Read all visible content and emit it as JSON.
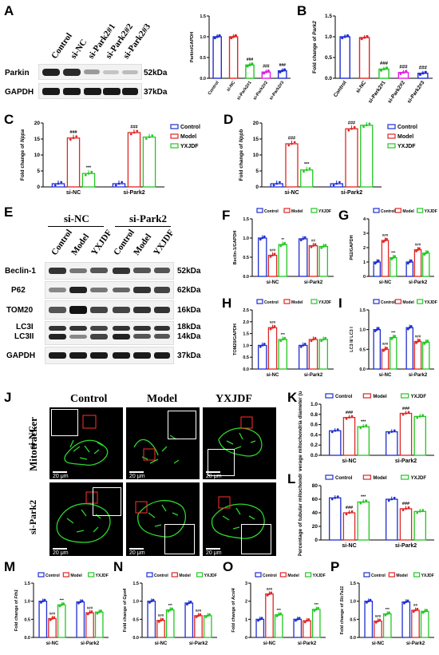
{
  "panel_letters": {
    "A": "A",
    "B": "B",
    "C": "C",
    "D": "D",
    "E": "E",
    "F": "F",
    "G": "G",
    "H": "H",
    "I": "I",
    "J": "J",
    "K": "K",
    "L": "L",
    "M": "M",
    "N": "N",
    "O": "O",
    "P": "P"
  },
  "blot_A": {
    "lanes": [
      "Control",
      "si-NC",
      "si-Park2#1",
      "si-Park2#2",
      "si-Park2#3"
    ],
    "rows": [
      {
        "name": "Parkin",
        "kda": "52kDa"
      },
      {
        "name": "GAPDH",
        "kda": "37kDa"
      }
    ]
  },
  "blot_E": {
    "groups": [
      "si-NC",
      "si-Park2"
    ],
    "lanes": [
      "Control",
      "Model",
      "YXJDF",
      "Control",
      "Model",
      "YXJDF"
    ],
    "rows": [
      {
        "name": "Beclin-1",
        "kda": "52kDa"
      },
      {
        "name": "P62",
        "kda": "62kDa"
      },
      {
        "name": "TOM20",
        "kda": "16kDa"
      },
      {
        "name": "LC3I",
        "kda": "18kDa"
      },
      {
        "name": "LC3II",
        "kda": "14kDa"
      },
      {
        "name": "GAPDH",
        "kda": "37kDa"
      }
    ]
  },
  "micro_J": {
    "cols": [
      "Control",
      "Model",
      "YXJDF"
    ],
    "rows": [
      "si-NC",
      "si-Park2"
    ],
    "side_label": "Mitotracker",
    "scale": "20 μm"
  },
  "colors": {
    "control": "#1f2ecf",
    "model": "#e02626",
    "yxjdf": "#22c722",
    "bar_pink": "#e020e0",
    "bar_blue": "#1f2ecf"
  },
  "chart_data": [
    {
      "id": "A",
      "type": "bar",
      "ylabel": "Parkin/GAPDH",
      "ylim": [
        0,
        1.5
      ],
      "yticks": [
        "0.0",
        "0.5",
        "1.0",
        "1.5"
      ],
      "categories": [
        "Control",
        "si-NC",
        "si-Park2#1",
        "si-Park2#2",
        "si-Park2#3"
      ],
      "values": [
        1.0,
        1.0,
        0.32,
        0.15,
        0.18
      ],
      "sig": [
        "",
        "",
        "###",
        "###",
        "###"
      ],
      "bar_colors": [
        "#1f2ecf",
        "#e02626",
        "#22c722",
        "#e020e0",
        "#1f2ecf"
      ]
    },
    {
      "id": "B",
      "type": "bar",
      "ylabel": "Fold change of Park2",
      "ylim": [
        0,
        1.5
      ],
      "yticks": [
        "0.0",
        "0.5",
        "1.0",
        "1.5"
      ],
      "categories": [
        "Control",
        "si-NC",
        "si-Park2#1",
        "si-Park2#2",
        "si-Park2#3"
      ],
      "values": [
        1.0,
        0.98,
        0.22,
        0.14,
        0.12
      ],
      "sig": [
        "",
        "",
        "###",
        "###",
        "###"
      ],
      "bar_colors": [
        "#1f2ecf",
        "#e02626",
        "#22c722",
        "#e020e0",
        "#1f2ecf"
      ]
    },
    {
      "id": "C",
      "type": "bar",
      "ylabel": "Fold change of Nppa",
      "ylim": [
        0,
        20
      ],
      "yticks": [
        "0",
        "5",
        "10",
        "15",
        "20"
      ],
      "groups": [
        "si-NC",
        "si-Park2"
      ],
      "legend": [
        "Control",
        "Model",
        "YXJDF"
      ],
      "series": [
        {
          "name": "Control",
          "values": [
            1.0,
            1.0
          ]
        },
        {
          "name": "Model",
          "values": [
            15.3,
            17.0
          ]
        },
        {
          "name": "YXJDF",
          "values": [
            4.2,
            15.6
          ]
        }
      ],
      "sig": [
        [
          "",
          "###",
          "***"
        ],
        [
          "",
          "###",
          ""
        ]
      ]
    },
    {
      "id": "D",
      "type": "bar",
      "ylabel": "Fold change of Nppb",
      "ylim": [
        0,
        20
      ],
      "yticks": [
        "0",
        "5",
        "10",
        "15",
        "20"
      ],
      "groups": [
        "si-NC",
        "si-Park2"
      ],
      "legend": [
        "Control",
        "Model",
        "YXJDF"
      ],
      "series": [
        {
          "name": "Control",
          "values": [
            1.0,
            1.0
          ]
        },
        {
          "name": "Model",
          "values": [
            13.5,
            18.2
          ]
        },
        {
          "name": "YXJDF",
          "values": [
            5.3,
            19.3
          ]
        }
      ],
      "sig": [
        [
          "",
          "###",
          "***"
        ],
        [
          "",
          "###",
          ""
        ]
      ]
    },
    {
      "id": "F",
      "type": "bar",
      "ylabel": "Beclin-1/GAPDH",
      "ylim": [
        0,
        1.5
      ],
      "yticks": [
        "0.0",
        "0.5",
        "1.0",
        "1.5"
      ],
      "groups": [
        "si-NC",
        "si-Park2"
      ],
      "legend": [
        "Control",
        "Model",
        "YXJDF"
      ],
      "series": [
        {
          "name": "Control",
          "values": [
            1.0,
            0.98
          ]
        },
        {
          "name": "Model",
          "values": [
            0.55,
            0.8
          ]
        },
        {
          "name": "YXJDF",
          "values": [
            0.83,
            0.78
          ]
        }
      ],
      "sig": [
        [
          "",
          "###",
          "**"
        ],
        [
          "",
          "##",
          ""
        ]
      ]
    },
    {
      "id": "G",
      "type": "bar",
      "ylabel": "P62/GAPDH",
      "ylim": [
        0,
        4
      ],
      "yticks": [
        "0",
        "1",
        "2",
        "3",
        "4"
      ],
      "groups": [
        "si-NC",
        "si-Park2"
      ],
      "legend": [
        "Control",
        "Model",
        "YXJDF"
      ],
      "series": [
        {
          "name": "Control",
          "values": [
            1.0,
            1.0
          ]
        },
        {
          "name": "Model",
          "values": [
            2.5,
            1.85
          ]
        },
        {
          "name": "YXJDF",
          "values": [
            1.3,
            1.62
          ]
        }
      ],
      "sig": [
        [
          "",
          "###",
          "***"
        ],
        [
          "",
          "###",
          ""
        ]
      ]
    },
    {
      "id": "H",
      "type": "bar",
      "ylabel": "TOM20/GAPDH",
      "ylim": [
        0,
        2.5
      ],
      "yticks": [
        "0.0",
        "0.5",
        "1.0",
        "1.5",
        "2.0",
        "2.5"
      ],
      "groups": [
        "si-NC",
        "si-Park2"
      ],
      "legend": [
        "Control",
        "Model",
        "YXJDF"
      ],
      "series": [
        {
          "name": "Control",
          "values": [
            1.0,
            1.0
          ]
        },
        {
          "name": "Model",
          "values": [
            1.75,
            1.25
          ]
        },
        {
          "name": "YXJDF",
          "values": [
            1.25,
            1.25
          ]
        }
      ],
      "sig": [
        [
          "",
          "###",
          "***"
        ],
        [
          "",
          "",
          ""
        ]
      ]
    },
    {
      "id": "I",
      "type": "bar",
      "ylabel": "LC3 II/ LC3 I",
      "ylim": [
        0,
        1.5
      ],
      "yticks": [
        "0.0",
        "0.5",
        "1.0",
        "1.5"
      ],
      "groups": [
        "si-NC",
        "si-Park2"
      ],
      "legend": [
        "Control",
        "Model",
        "YXJDF"
      ],
      "series": [
        {
          "name": "Control",
          "values": [
            1.0,
            1.05
          ]
        },
        {
          "name": "Model",
          "values": [
            0.5,
            0.7
          ]
        },
        {
          "name": "YXJDF",
          "values": [
            0.8,
            0.68
          ]
        }
      ],
      "sig": [
        [
          "",
          "###",
          "***"
        ],
        [
          "",
          "###",
          ""
        ]
      ]
    },
    {
      "id": "K",
      "type": "bar",
      "ylabel": "Average mitochondria diameter (um)",
      "ylim": [
        0,
        1.0
      ],
      "yticks": [
        "0.0",
        "0.2",
        "0.4",
        "0.6",
        "0.8",
        "1.0"
      ],
      "groups": [
        "si-NC",
        "si-Park2"
      ],
      "legend": [
        "Control",
        "Model",
        "YXJDF"
      ],
      "series": [
        {
          "name": "Control",
          "values": [
            0.48,
            0.46
          ]
        },
        {
          "name": "Model",
          "values": [
            0.74,
            0.82
          ]
        },
        {
          "name": "YXJDF",
          "values": [
            0.56,
            0.76
          ]
        }
      ],
      "sig": [
        [
          "",
          "###",
          "***"
        ],
        [
          "",
          "###",
          ""
        ]
      ]
    },
    {
      "id": "L",
      "type": "bar",
      "ylabel": "Percentage of tubular mitochondria",
      "ylim": [
        0,
        80
      ],
      "yticks": [
        "0",
        "20",
        "40",
        "60",
        "80"
      ],
      "groups": [
        "si-NC",
        "si-Park2"
      ],
      "legend": [
        "Control",
        "Model",
        "YXJDF"
      ],
      "series": [
        {
          "name": "Control",
          "values": [
            62,
            60
          ]
        },
        {
          "name": "Model",
          "values": [
            40,
            46
          ]
        },
        {
          "name": "YXJDF",
          "values": [
            56,
            42
          ]
        }
      ],
      "sig": [
        [
          "",
          "###",
          "***"
        ],
        [
          "",
          "###",
          ""
        ]
      ]
    },
    {
      "id": "M",
      "type": "bar",
      "ylabel": "Fold change of Fth1",
      "ylim": [
        0,
        1.5
      ],
      "yticks": [
        "0.0",
        "0.5",
        "1.0",
        "1.5"
      ],
      "groups": [
        "si-NC",
        "si-Park2"
      ],
      "legend": [
        "Control",
        "Model",
        "YXJDF"
      ],
      "series": [
        {
          "name": "Control",
          "values": [
            1.0,
            0.98
          ]
        },
        {
          "name": "Model",
          "values": [
            0.52,
            0.68
          ]
        },
        {
          "name": "YXJDF",
          "values": [
            0.9,
            0.7
          ]
        }
      ],
      "sig": [
        [
          "",
          "###",
          "***"
        ],
        [
          "",
          "###",
          ""
        ]
      ]
    },
    {
      "id": "N",
      "type": "bar",
      "ylabel": "Fold change of Gpx4",
      "ylim": [
        0,
        1.5
      ],
      "yticks": [
        "0.0",
        "0.5",
        "1.0",
        "1.5"
      ],
      "groups": [
        "si-NC",
        "si-Park2"
      ],
      "legend": [
        "Control",
        "Model",
        "YXJDF"
      ],
      "series": [
        {
          "name": "Control",
          "values": [
            1.0,
            0.95
          ]
        },
        {
          "name": "Model",
          "values": [
            0.47,
            0.6
          ]
        },
        {
          "name": "YXJDF",
          "values": [
            0.76,
            0.6
          ]
        }
      ],
      "sig": [
        [
          "",
          "###",
          "***"
        ],
        [
          "",
          "###",
          ""
        ]
      ]
    },
    {
      "id": "O",
      "type": "bar",
      "ylabel": "Fold change of Acsl4",
      "ylim": [
        0,
        3
      ],
      "yticks": [
        "0",
        "1",
        "2",
        "3"
      ],
      "groups": [
        "si-NC",
        "si-Park2"
      ],
      "legend": [
        "Control",
        "Model",
        "YXJDF"
      ],
      "series": [
        {
          "name": "Control",
          "values": [
            1.0,
            1.0
          ]
        },
        {
          "name": "Model",
          "values": [
            2.4,
            0.92
          ]
        },
        {
          "name": "YXJDF",
          "values": [
            1.25,
            1.55
          ]
        }
      ],
      "sig": [
        [
          "",
          "###",
          "***"
        ],
        [
          "",
          "",
          "***"
        ]
      ]
    },
    {
      "id": "P",
      "type": "bar",
      "ylabel": "Fold change of Slc7a11",
      "ylim": [
        0,
        1.5
      ],
      "yticks": [
        "0.0",
        "0.5",
        "1.0",
        "1.5"
      ],
      "groups": [
        "si-NC",
        "si-Park2"
      ],
      "legend": [
        "Control",
        "Model",
        "YXJDF"
      ],
      "series": [
        {
          "name": "Control",
          "values": [
            1.0,
            0.98
          ]
        },
        {
          "name": "Model",
          "values": [
            0.45,
            0.75
          ]
        },
        {
          "name": "YXJDF",
          "values": [
            0.65,
            0.72
          ]
        }
      ],
      "sig": [
        [
          "",
          "###",
          "***"
        ],
        [
          "",
          "##",
          ""
        ]
      ]
    }
  ]
}
